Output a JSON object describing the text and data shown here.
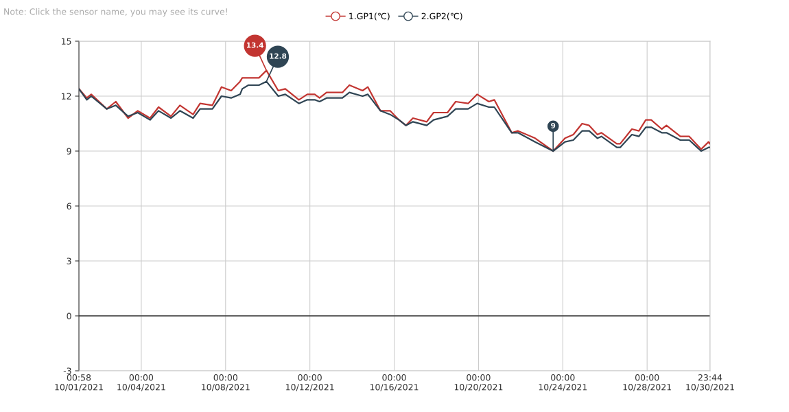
{
  "chart_data": {
    "type": "line",
    "x": [
      "2021-10-01T00:58",
      "2021-10-01T10:00",
      "2021-10-01T15:00",
      "2021-10-02T08:40",
      "2021-10-02T19:00",
      "2021-10-03T09:00",
      "2021-10-03T20:00",
      "2021-10-04T10:00",
      "2021-10-04T19:40",
      "2021-10-05T09:50",
      "2021-10-05T20:00",
      "2021-10-06T11:00",
      "2021-10-06T19:00",
      "2021-10-07T09:00",
      "2021-10-07T19:20",
      "2021-10-08T06:20",
      "2021-10-08T16:30",
      "2021-10-08T19:00",
      "2021-10-09T02:00",
      "2021-10-09T14:00",
      "2021-10-09T22:30",
      "2021-10-10T12:00",
      "2021-10-10T20:00",
      "2021-10-11T11:30",
      "2021-10-11T21:00",
      "2021-10-12T05:30",
      "2021-10-12T11:00",
      "2021-10-12T19:00",
      "2021-10-13T13:00",
      "2021-10-13T21:00",
      "2021-10-14T12:00",
      "2021-10-14T18:00",
      "2021-10-15T08:20",
      "2021-10-15T19:20",
      "2021-10-16T05:30",
      "2021-10-16T13:20",
      "2021-10-16T21:20",
      "2021-10-17T13:00",
      "2021-10-17T20:50",
      "2021-10-18T12:40",
      "2021-10-18T22:00",
      "2021-10-19T12:10",
      "2021-10-19T22:30",
      "2021-10-20T11:50",
      "2021-10-20T18:00",
      "2021-10-21T13:50",
      "2021-10-21T21:00",
      "2021-10-22T16:30",
      "2021-10-23T13:00",
      "2021-10-24T02:30",
      "2021-10-24T12:00",
      "2021-10-24T22:00",
      "2021-10-25T06:00",
      "2021-10-25T15:30",
      "2021-10-25T20:00",
      "2021-10-26T13:30",
      "2021-10-26T17:20",
      "2021-10-27T06:40",
      "2021-10-27T14:40",
      "2021-10-27T22:30",
      "2021-10-28T04:40",
      "2021-10-28T16:40",
      "2021-10-28T22:00",
      "2021-10-29T13:50",
      "2021-10-30T00:00",
      "2021-10-30T13:30",
      "2021-10-30T22:00",
      "2021-10-30T23:44"
    ],
    "series": [
      {
        "name": "1.GP1(℃)",
        "color": "#c23531",
        "values": [
          12.4,
          11.9,
          12.1,
          11.3,
          11.7,
          10.8,
          11.2,
          10.8,
          11.4,
          10.9,
          11.5,
          11.0,
          11.6,
          11.5,
          12.5,
          12.3,
          12.8,
          13.0,
          13.0,
          13.0,
          13.4,
          12.3,
          12.4,
          11.8,
          12.1,
          12.1,
          11.9,
          12.2,
          12.2,
          12.6,
          12.3,
          12.5,
          11.2,
          11.2,
          10.7,
          10.4,
          10.8,
          10.6,
          11.1,
          11.1,
          11.7,
          11.6,
          12.1,
          11.7,
          11.8,
          10.0,
          10.1,
          9.7,
          9.0,
          9.7,
          9.9,
          10.5,
          10.4,
          9.9,
          10.0,
          9.4,
          9.4,
          10.2,
          10.1,
          10.7,
          10.7,
          10.2,
          10.4,
          9.8,
          9.8,
          9.1,
          9.5,
          9.4
        ]
      },
      {
        "name": "2.GP2(℃)",
        "color": "#2f4554",
        "values": [
          12.4,
          11.8,
          12.0,
          11.3,
          11.5,
          10.9,
          11.1,
          10.7,
          11.2,
          10.8,
          11.2,
          10.8,
          11.3,
          11.3,
          12.0,
          11.9,
          12.1,
          12.4,
          12.6,
          12.6,
          12.8,
          12.0,
          12.1,
          11.6,
          11.8,
          11.8,
          11.7,
          11.9,
          11.9,
          12.2,
          12.0,
          12.1,
          11.2,
          11.0,
          10.7,
          10.4,
          10.6,
          10.4,
          10.7,
          10.9,
          11.3,
          11.3,
          11.6,
          11.4,
          11.4,
          10.0,
          10.0,
          9.5,
          9.0,
          9.5,
          9.6,
          10.1,
          10.1,
          9.7,
          9.8,
          9.2,
          9.2,
          9.9,
          9.8,
          10.3,
          10.3,
          10.0,
          10.0,
          9.6,
          9.6,
          9.0,
          9.2,
          9.2
        ]
      }
    ],
    "xlim": [
      "2021-10-01T00:58",
      "2021-10-30T23:44"
    ],
    "xticks": [
      {
        "value": "2021-10-01T00:58",
        "label": "00:58\n10/01/2021"
      },
      {
        "value": "2021-10-04T00:00",
        "label": "00:00\n10/04/2021"
      },
      {
        "value": "2021-10-08T00:00",
        "label": "00:00\n10/08/2021"
      },
      {
        "value": "2021-10-12T00:00",
        "label": "00:00\n10/12/2021"
      },
      {
        "value": "2021-10-16T00:00",
        "label": "00:00\n10/16/2021"
      },
      {
        "value": "2021-10-20T00:00",
        "label": "00:00\n10/20/2021"
      },
      {
        "value": "2021-10-24T00:00",
        "label": "00:00\n10/24/2021"
      },
      {
        "value": "2021-10-28T00:00",
        "label": "00:00\n10/28/2021"
      },
      {
        "value": "2021-10-30T23:44",
        "label": "23:44\n10/30/2021"
      }
    ],
    "ylim": [
      -3,
      15
    ],
    "yticks": [
      -3,
      0,
      3,
      6,
      9,
      12,
      15
    ],
    "grid": true,
    "legend": "top",
    "ref_lines": [
      {
        "axis": "y",
        "value": 0,
        "color": "#333333"
      }
    ],
    "annotations": [
      "Note: Click the sensor name, you may see its curve!",
      {
        "text": "13.4",
        "x": "2021-10-09T22:30",
        "y": 13.4
      },
      {
        "text": "12.8",
        "x": "2021-10-09T22:30",
        "y": 12.8
      },
      {
        "text": "9",
        "x": "2021-10-23T13:00",
        "y": 9
      }
    ]
  }
}
